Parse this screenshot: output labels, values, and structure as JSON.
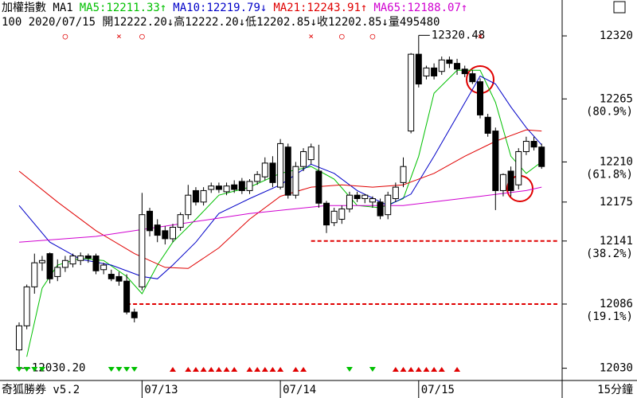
{
  "chart_data": {
    "type": "candlestick",
    "header": {
      "title": "加權指數 MA1",
      "info": "100 2020/07/15 開12222.20↓高12222.20↓低12202.85↓收12202.85↓量495480"
    },
    "footer": {
      "brand": "奇狐勝券 v5.2",
      "period": "15分鐘"
    },
    "day_labels": [
      {
        "index": 16,
        "label": "07/13"
      },
      {
        "index": 34,
        "label": "07/14"
      },
      {
        "index": 52,
        "label": "07/15"
      }
    ],
    "ylim": [
      12020,
      12327
    ],
    "yticks": [
      12320,
      12265,
      12210,
      12175,
      12141,
      12086,
      12030
    ],
    "fib_labels": [
      {
        "value": 12265,
        "label": "(80.9%)"
      },
      {
        "value": 12210,
        "label": "(61.8%)"
      },
      {
        "value": 12141,
        "label": "(38.2%)"
      },
      {
        "value": 12086,
        "label": "(19.1%)"
      }
    ],
    "open": [
      12046,
      12067,
      12101,
      12122,
      12130,
      12110,
      12118,
      12121,
      12124,
      12128,
      12128,
      12116,
      12112,
      12110,
      12106,
      12079,
      12101,
      12167,
      12155,
      12150,
      12143,
      12153,
      12164,
      12185,
      12175,
      12186,
      12189,
      12184,
      12190,
      12193,
      12185,
      12193,
      12197,
      12209,
      12188,
      12223,
      12181,
      12206,
      12212,
      12202,
      12174,
      12157,
      12160,
      12169,
      12181,
      12178,
      12175,
      12175,
      12164,
      12178,
      12192,
      12237,
      12304,
      12285,
      12292,
      12289,
      12299,
      12296,
      12291,
      12287,
      12280,
      12249,
      12237,
      12185,
      12202,
      12190,
      12219,
      12228,
      12223
    ],
    "high": [
      12070,
      12103,
      12130,
      12128,
      12131,
      12125,
      12128,
      12130,
      12131,
      12130,
      12130,
      12122,
      12116,
      12114,
      12112,
      12082,
      12183,
      12170,
      12160,
      12154,
      12156,
      12166,
      12190,
      12188,
      12188,
      12192,
      12192,
      12192,
      12194,
      12196,
      12195,
      12202,
      12214,
      12215,
      12230,
      12226,
      12210,
      12222,
      12226,
      12225,
      12176,
      12170,
      12172,
      12184,
      12184,
      12182,
      12180,
      12178,
      12184,
      12192,
      12214,
      12305,
      12320.48,
      12294,
      12296,
      12302,
      12302,
      12300,
      12294,
      12290,
      12283,
      12252,
      12240,
      12200,
      12206,
      12222,
      12232,
      12232,
      12226
    ],
    "low": [
      12030,
      12064,
      12095,
      12115,
      12104,
      12106,
      12114,
      12118,
      12120,
      12122,
      12112,
      12112,
      12106,
      12102,
      12077,
      12070,
      12098,
      12145,
      12140,
      12138,
      12140,
      12150,
      12160,
      12172,
      12172,
      12183,
      12183,
      12181,
      12183,
      12182,
      12182,
      12190,
      12194,
      12188,
      12186,
      12178,
      12178,
      12202,
      12208,
      12170,
      12148,
      12154,
      12156,
      12166,
      12175,
      12174,
      12170,
      12160,
      12160,
      12175,
      12188,
      12235,
      12275,
      12282,
      12282,
      12286,
      12292,
      12286,
      12284,
      12278,
      12248,
      12232,
      12168,
      12180,
      12180,
      12186,
      12216,
      12220,
      12204
    ],
    "close": [
      12067,
      12101,
      12122,
      12124,
      12108,
      12118,
      12124,
      12128,
      12128,
      12126,
      12115,
      12120,
      12108,
      12106,
      12079,
      12074,
      12164,
      12150,
      12146,
      12143,
      12153,
      12164,
      12181,
      12175,
      12185,
      12189,
      12186,
      12189,
      12186,
      12185,
      12193,
      12199,
      12209,
      12192,
      12226,
      12181,
      12206,
      12219,
      12223,
      12174,
      12155,
      12167,
      12169,
      12181,
      12178,
      12181,
      12178,
      12163,
      12181,
      12188,
      12206,
      12304,
      12278,
      12292,
      12285,
      12299,
      12296,
      12291,
      12287,
      12280,
      12251,
      12235,
      12185,
      12199,
      12185,
      12219,
      12228,
      12223,
      12206
    ],
    "up_color": "#ffffff",
    "down_color": "#000000",
    "series": [
      {
        "name": "MA5:12211.33↑",
        "color": "#00c000",
        "x": [
          1,
          3,
          5,
          8,
          11,
          14,
          16,
          18,
          20,
          23,
          26,
          30,
          34,
          38,
          41,
          44,
          47,
          50,
          52,
          54,
          57,
          60,
          62,
          64,
          66,
          68
        ],
        "values": [
          12040,
          12100,
          12120,
          12126,
          12124,
          12110,
          12095,
          12120,
          12140,
          12160,
          12181,
          12188,
          12200,
          12206,
          12195,
          12172,
          12170,
          12178,
          12215,
          12270,
          12290,
          12290,
          12262,
          12215,
          12200,
          12210
        ]
      },
      {
        "name": "MA10:12219.79↓",
        "color": "#0000c8",
        "x": [
          0,
          4,
          8,
          12,
          16,
          18,
          20,
          23,
          26,
          30,
          34,
          38,
          41,
          44,
          48,
          51,
          54,
          57,
          60,
          62,
          64,
          66,
          68
        ],
        "values": [
          12172,
          12140,
          12125,
          12120,
          12110,
          12108,
          12120,
          12140,
          12165,
          12178,
          12190,
          12208,
          12200,
          12185,
          12172,
          12182,
          12215,
          12250,
          12285,
          12278,
          12258,
          12240,
          12225
        ]
      },
      {
        "name": "MA21:12243.91↑",
        "color": "#e00000",
        "x": [
          0,
          5,
          10,
          15,
          19,
          22,
          26,
          30,
          34,
          38,
          42,
          46,
          50,
          54,
          58,
          62,
          66,
          68
        ],
        "values": [
          12202,
          12175,
          12150,
          12130,
          12118,
          12117,
          12135,
          12160,
          12180,
          12188,
          12190,
          12188,
          12190,
          12200,
          12215,
          12228,
          12238,
          12237
        ]
      },
      {
        "name": "MA65:12188.07↑",
        "color": "#d000d0",
        "x": [
          0,
          10,
          20,
          30,
          40,
          50,
          55,
          60,
          66,
          68
        ],
        "values": [
          12140,
          12145,
          12155,
          12165,
          12172,
          12172,
          12176,
          12180,
          12185,
          12188
        ]
      }
    ],
    "top_signals": [
      {
        "index": 6,
        "symbol": "○"
      },
      {
        "index": 13,
        "symbol": "×"
      },
      {
        "index": 16,
        "symbol": "○"
      },
      {
        "index": 38,
        "symbol": "×"
      },
      {
        "index": 42,
        "symbol": "○"
      },
      {
        "index": 46,
        "symbol": "○"
      },
      {
        "index": 60,
        "symbol": "×"
      }
    ],
    "signal_color": "#e00000",
    "down_signals": {
      "color": "#00c000",
      "indices": [
        0,
        1,
        2,
        3,
        12,
        13,
        14,
        15,
        43,
        46
      ]
    },
    "up_signals": {
      "color": "#e00000",
      "indices": [
        20,
        22,
        23,
        24,
        25,
        26,
        27,
        28,
        30,
        31,
        32,
        33,
        34,
        36,
        37,
        49,
        50,
        51,
        52,
        53,
        54,
        55,
        57
      ]
    },
    "annotations": [
      {
        "index": 52,
        "text": "12320.48"
      },
      {
        "index": 0,
        "text": "12030.20"
      }
    ],
    "levels": [
      {
        "value": 12141,
        "from": 38,
        "color": "#e00000"
      },
      {
        "value": 12086,
        "from": 14,
        "color": "#e00000"
      }
    ]
  }
}
